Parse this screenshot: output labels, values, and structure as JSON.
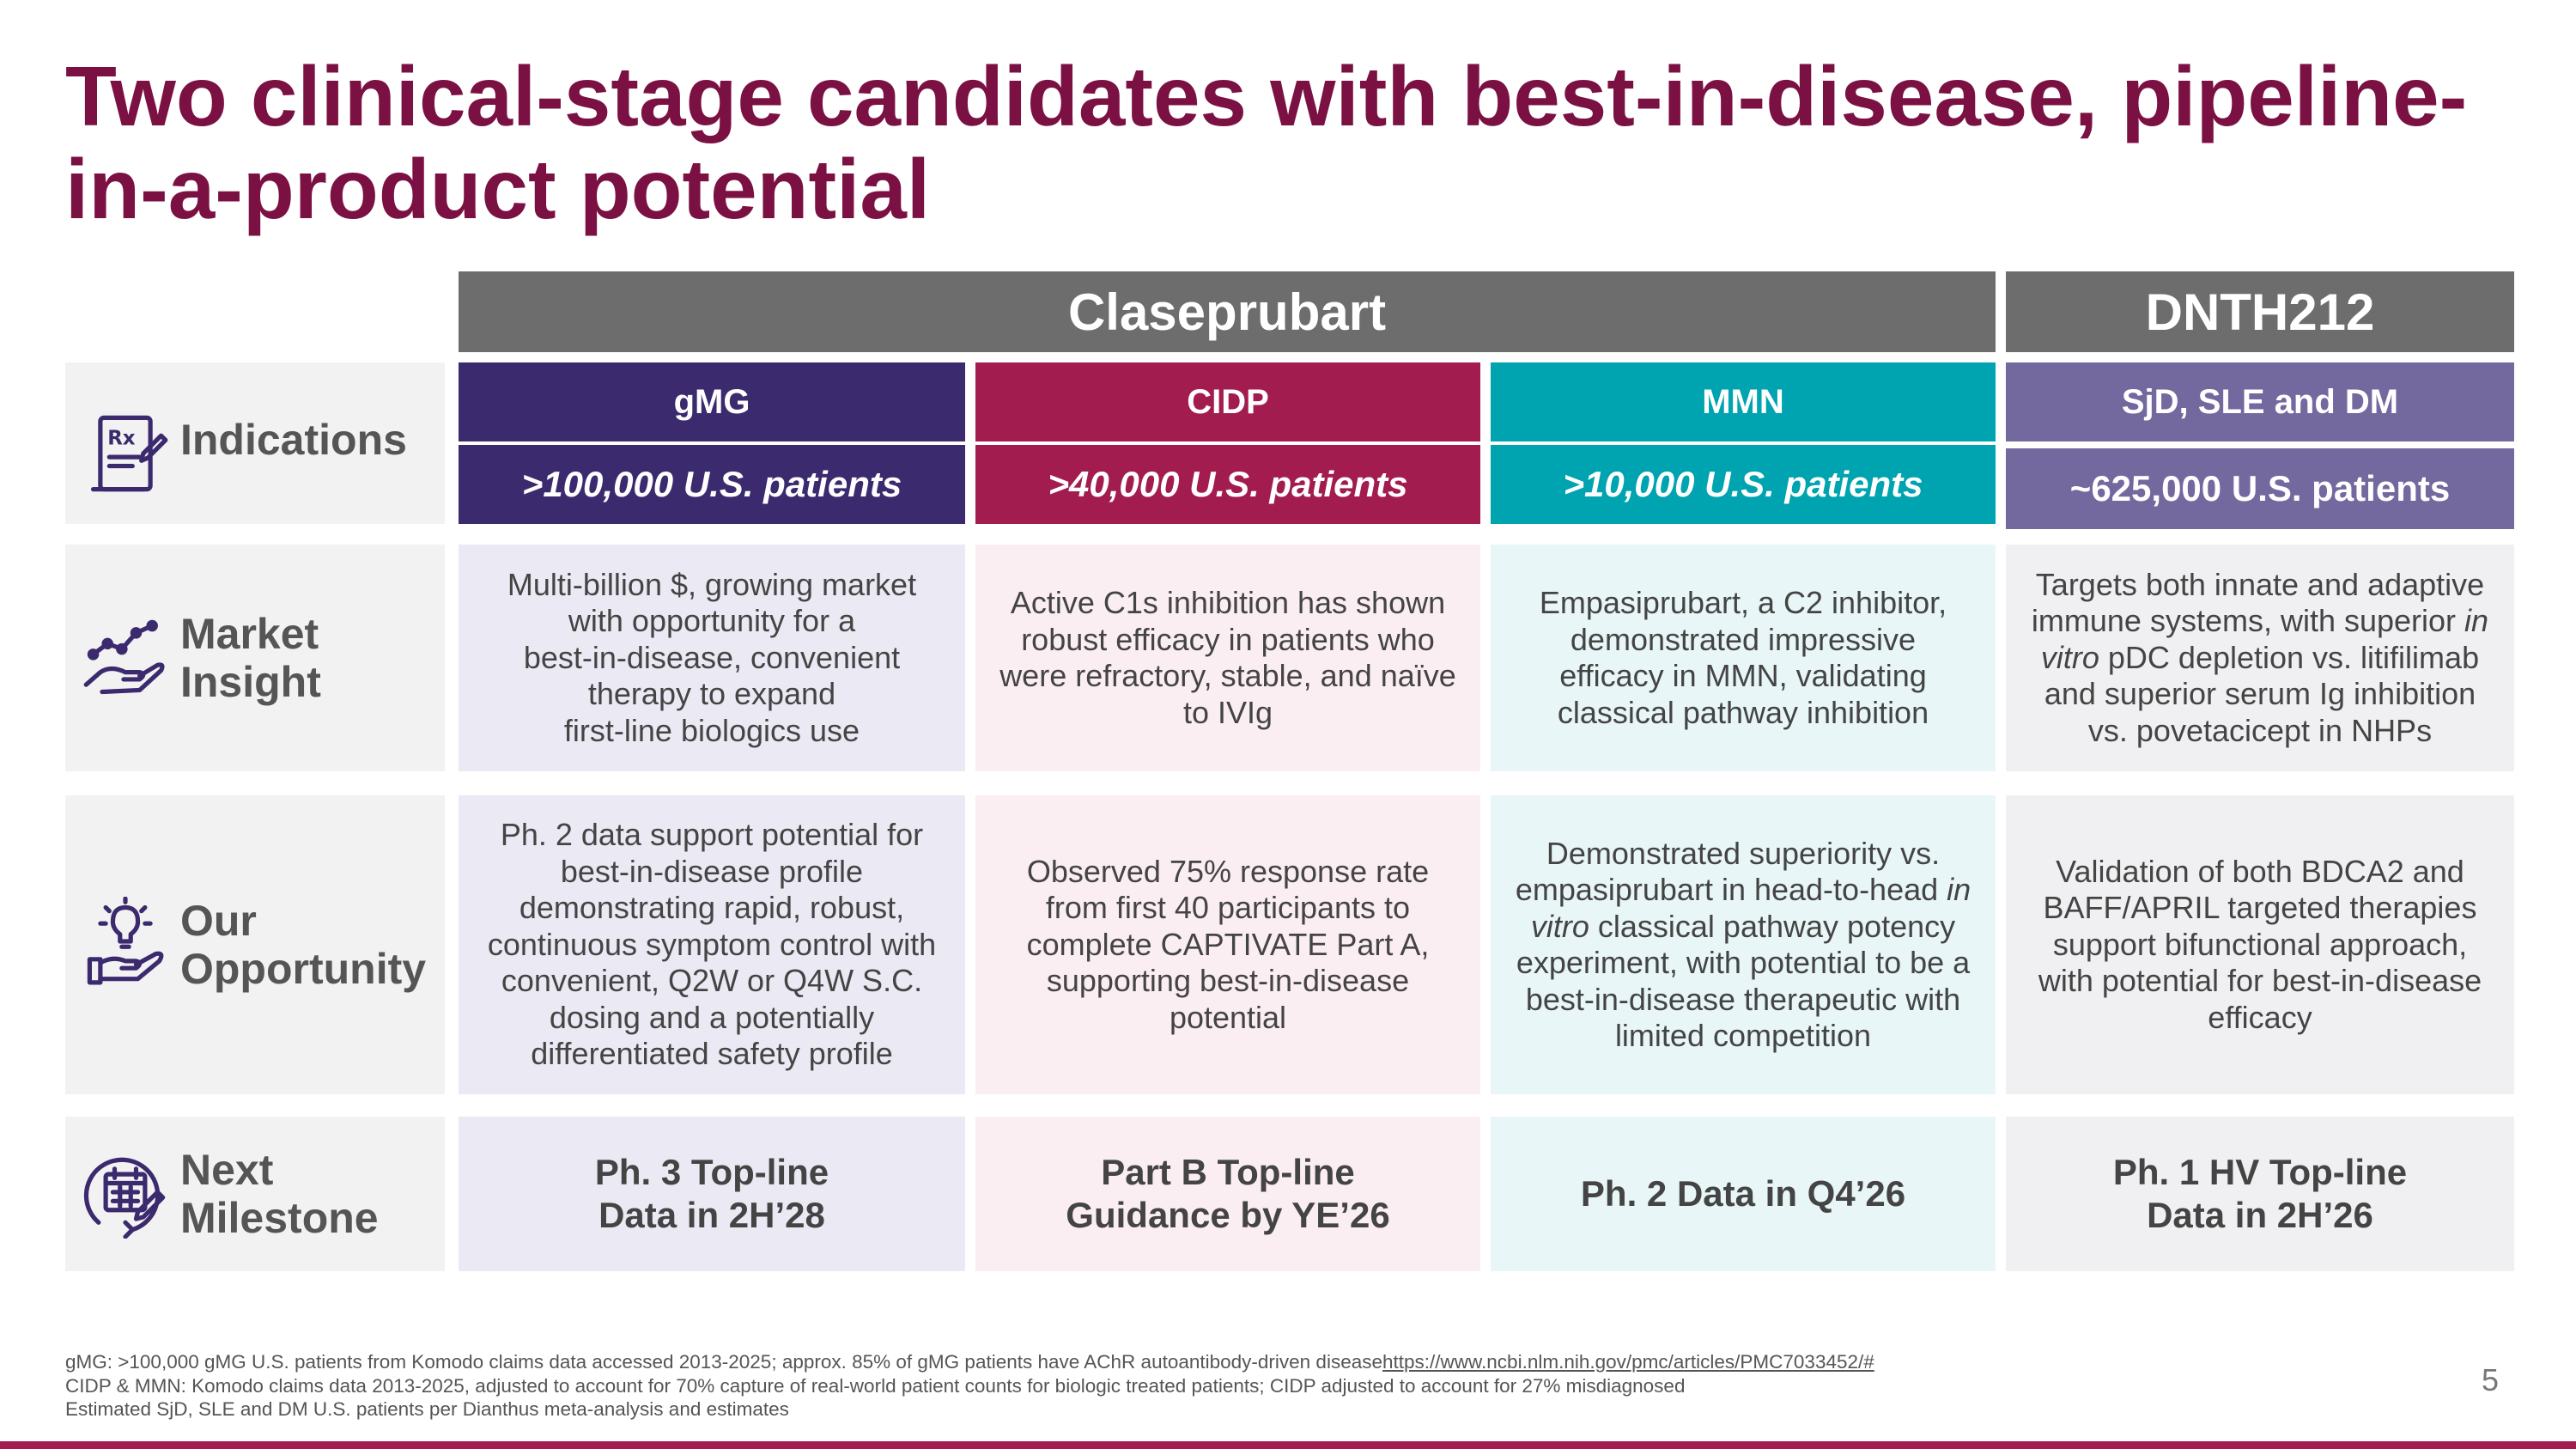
{
  "title": "Two clinical-stage candidates with best-in-disease, pipeline-in-a-product potential",
  "headers": {
    "left": "Claseprubart",
    "right": "DNTH212"
  },
  "rows": {
    "indications": {
      "label": "Indications",
      "icon": "prescription-icon"
    },
    "market": {
      "label": "Market\nInsight",
      "icon": "hand-chart-icon"
    },
    "opportunity": {
      "label": "Our\nOpportunity",
      "icon": "hand-lightbulb-icon"
    },
    "milestone": {
      "label": "Next\nMilestone",
      "icon": "calendar-icon"
    }
  },
  "columns": [
    {
      "indication": "gMG",
      "patients": ">100,000 U.S. patients",
      "market": "Multi-billion $, growing market\nwith opportunity for a\nbest-in-disease, convenient\ntherapy to expand\nfirst-line biologics use",
      "opportunity": "Ph. 2 data support potential for\nbest-in-disease profile\ndemonstrating rapid, robust,\ncontinuous symptom control with\nconvenient, Q2W or Q4W S.C.\ndosing and a potentially\ndifferentiated safety profile",
      "milestone": "Ph. 3 Top-line\nData in 2H’28"
    },
    {
      "indication": "CIDP",
      "patients": ">40,000 U.S. patients",
      "market": "Active C1s inhibition has shown\nrobust efficacy in patients who\nwere refractory, stable, and naïve\nto IVIg",
      "opportunity": "Observed 75% response rate\nfrom first 40 participants to\ncomplete CAPTIVATE Part A,\nsupporting best-in-disease\npotential",
      "milestone": "Part B Top-line\nGuidance by YE’26"
    },
    {
      "indication": "MMN",
      "patients": ">10,000 U.S. patients",
      "market": "Empasiprubart, a C2 inhibitor,\ndemonstrated impressive\nefficacy in MMN, validating\nclassical pathway inhibition",
      "opportunity_pre": "Demonstrated superiority vs.\nempasiprubart in head-to-head ",
      "opportunity_em": "in vitro",
      "opportunity_post": " classical pathway potency\nexperiment, with potential to be a\nbest-in-disease therapeutic with\nlimited competition",
      "milestone": "Ph. 2 Data in Q4’26"
    },
    {
      "indication": "SjD, SLE and DM",
      "patients": "~625,000 U.S. patients",
      "market_pre": "Targets both innate and adaptive\nimmune systems, with superior ",
      "market_em": "in vitro",
      "market_post": " pDC depletion vs. litifilimab\nand superior serum Ig inhibition\nvs. povetacicept in NHPs",
      "opportunity": "Validation of both BDCA2 and\nBAFF/APRIL targeted therapies\nsupport bifunctional approach,\nwith potential for best-in-disease\nefficacy",
      "milestone": "Ph. 1 HV Top-line\nData in 2H’26"
    }
  ],
  "colors": {
    "title": "#7b1042",
    "header": "#6d6d6d",
    "gmg": "#3b2a6e",
    "cidp": "#a31c4f",
    "mmn": "#00a3b0",
    "dnth": "#74699f",
    "gmg_light": "#ebe9f3",
    "cidp_light": "#fbeef2",
    "mmn_light": "#e8f6f7",
    "dnth_light": "#f0f0f2"
  },
  "footnotes": {
    "line1": "gMG: >100,000 gMG U.S. patients from Komodo claims data accessed 2013-2025; approx. 85% of gMG patients have AChR autoantibody-driven disease",
    "link": "https://www.ncbi.nlm.nih.gov/pmc/articles/PMC7033452/#",
    "line2": "CIDP & MMN: Komodo claims data 2013-2025, adjusted to account for 70% capture of real-world patient counts for biologic treated patients; CIDP adjusted to account for 27% misdiagnosed",
    "line3": "Estimated SjD, SLE and DM U.S. patients per Dianthus meta-analysis and estimates"
  },
  "page_number": "5"
}
